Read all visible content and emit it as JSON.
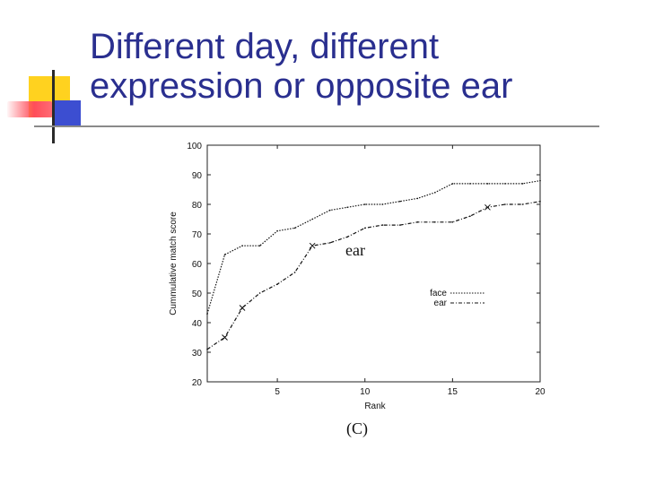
{
  "slide": {
    "title_line1": "Different day, different",
    "title_line2": "expression or opposite ear",
    "caption": "(C)"
  },
  "colors": {
    "title": "#2a2f8f",
    "accent_yellow": "#ffd21f",
    "accent_blue": "#3c4ed1",
    "accent_red": "#ff4d5a",
    "line": "#111111"
  },
  "chart_data": {
    "type": "line",
    "title": "",
    "xlabel": "Rank",
    "ylabel": "Cummulative match score",
    "xlim": [
      1,
      20
    ],
    "ylim": [
      20,
      100
    ],
    "x_ticks": [
      5,
      10,
      15,
      20
    ],
    "y_ticks": [
      20,
      30,
      40,
      50,
      60,
      70,
      80,
      90,
      100
    ],
    "annotation": "ear",
    "legend_position": "right",
    "series": [
      {
        "name": "face",
        "style": "dotted",
        "x": [
          1,
          2,
          3,
          4,
          5,
          6,
          7,
          8,
          9,
          10,
          11,
          12,
          13,
          14,
          15,
          16,
          17,
          18,
          19,
          20
        ],
        "y": [
          43,
          63,
          66,
          66,
          71,
          72,
          75,
          78,
          79,
          80,
          80,
          81,
          82,
          84,
          87,
          87,
          87,
          87,
          87,
          88
        ]
      },
      {
        "name": "ear",
        "style": "dashdot",
        "x": [
          1,
          2,
          3,
          4,
          5,
          6,
          7,
          8,
          9,
          10,
          11,
          12,
          13,
          14,
          15,
          16,
          17,
          18,
          19,
          20
        ],
        "y": [
          31,
          35,
          45,
          50,
          53,
          57,
          66,
          67,
          69,
          72,
          73,
          73,
          74,
          74,
          74,
          76,
          79,
          80,
          80,
          81
        ]
      }
    ]
  }
}
